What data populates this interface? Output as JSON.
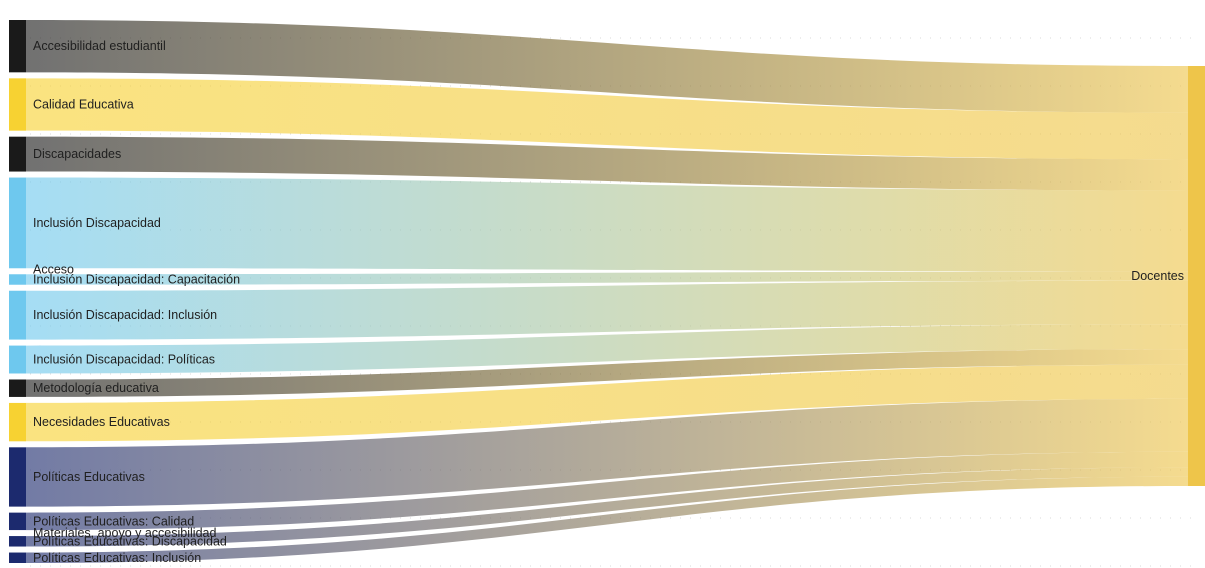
{
  "chart_data": {
    "type": "sankey",
    "target": {
      "name": "Docentes",
      "color": "#eec54a"
    },
    "nodes": [
      {
        "name": "Accesibilidad estudiantil",
        "value": 7.5,
        "color": "#1a1a1a"
      },
      {
        "name": "Calidad Educativa",
        "value": 7.5,
        "color": "#f7d232"
      },
      {
        "name": "Discapacidades",
        "value": 5,
        "color": "#1a1a1a"
      },
      {
        "name": "Inclusión Discapacidad",
        "value": 13,
        "color": "#6ec8ee"
      },
      {
        "name": "Inclusión Discapacidad: Capacitación",
        "value": 1.5,
        "color": "#6ec8ee",
        "prefix_label": "Acceso"
      },
      {
        "name": "Inclusión Discapacidad: Inclusión",
        "value": 7,
        "color": "#6ec8ee"
      },
      {
        "name": "Inclusión Discapacidad: Políticas",
        "value": 4,
        "color": "#6ec8ee"
      },
      {
        "name": "Metodología educativa",
        "value": 2.5,
        "color": "#1a1a1a"
      },
      {
        "name": "Necesidades Educativas",
        "value": 5.5,
        "color": "#f7d232"
      },
      {
        "name": "Políticas Educativas",
        "value": 8.5,
        "color": "#1c2a6e"
      },
      {
        "name": "Políticas Educativas: Calidad",
        "value": 2.5,
        "color": "#1c2a6e",
        "suffix_label": "Materiales, apoyo y accesibilidad"
      },
      {
        "name": "Políticas Educativas: Discapacidad",
        "value": 1.5,
        "color": "#1c2a6e"
      },
      {
        "name": "Políticas Educativas: Inclusión",
        "value": 1.5,
        "color": "#1c2a6e"
      }
    ]
  }
}
